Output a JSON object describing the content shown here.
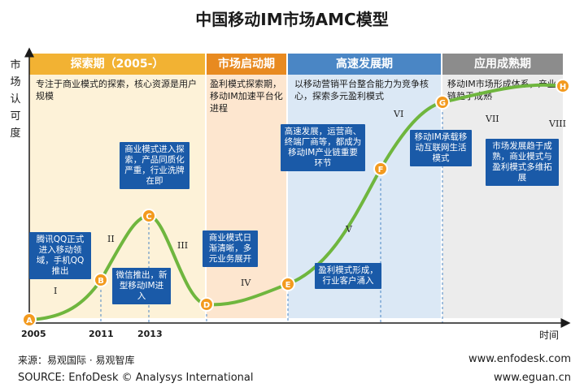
{
  "title": "中国移动IM市场AMC模型",
  "y_axis_label": "市场认可度",
  "x_axis_label": "时间",
  "x_ticks": [
    "2005",
    "2011",
    "2013"
  ],
  "phases": [
    {
      "name": "探索期（2005-）",
      "desc": "专注于商业模式的探索，核心资源是用户规模",
      "header_color": "#f2b233",
      "bg_color": "#fdf2d8"
    },
    {
      "name": "市场启动期",
      "desc": "盈利模式探索期，移动IM加速平台化进程",
      "header_color": "#e88a20",
      "bg_color": "#fde6cf"
    },
    {
      "name": "高速发展期",
      "desc": "以移动营销平台整合能力为竞争核心，探索多元盈利模式",
      "header_color": "#4a86c5",
      "bg_color": "#dbe8f5"
    },
    {
      "name": "应用成熟期",
      "desc": "移动IM市场形成体系，产业链趋于成熟",
      "header_color": "#8c8c8c",
      "bg_color": "#ececec"
    }
  ],
  "points": [
    "A",
    "B",
    "C",
    "D",
    "E",
    "F",
    "G",
    "H"
  ],
  "stages": [
    "I",
    "II",
    "III",
    "IV",
    "V",
    "VI",
    "VII",
    "VIII"
  ],
  "callouts": {
    "a": "腾讯QQ正式进入移动领域，手机QQ推出",
    "b": "微信推出，新型移动IM进入",
    "c": "商业模式进入探索，产品同质化严重，行业洗牌在即",
    "d": "商业模式日渐清晰，多元业务展开",
    "e": "盈利模式形成，行业客户涌入",
    "f": "高速发展，运营商、终端厂商等，都成为移动IM产业链重要环节",
    "g": "移动IM承载移动互联网生活模式",
    "h": "市场发展趋于成熟，商业模式与盈利模式多维拓展"
  },
  "footer": {
    "source_cn": "来源：易观国际 · 易观智库",
    "source_en": "SOURCE: EnfoDesk © Analysys International",
    "url1": "www.enfodesk.com",
    "url2": "www.eguan.cn"
  },
  "colors": {
    "curve": "#6fb63e",
    "point": "#f39a1e",
    "axis": "#1b1b1b",
    "callout": "#1a5aa8"
  }
}
